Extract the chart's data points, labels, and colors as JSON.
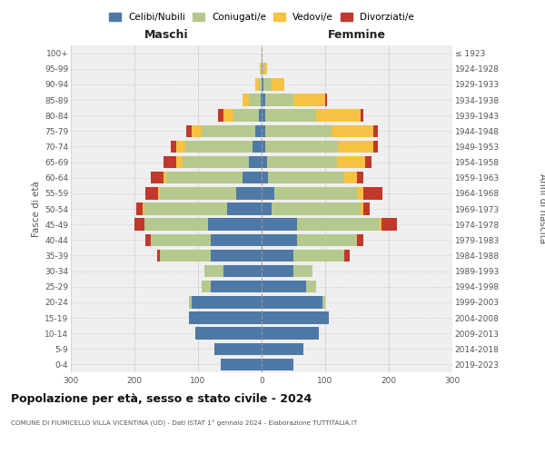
{
  "age_groups": [
    "0-4",
    "5-9",
    "10-14",
    "15-19",
    "20-24",
    "25-29",
    "30-34",
    "35-39",
    "40-44",
    "45-49",
    "50-54",
    "55-59",
    "60-64",
    "65-69",
    "70-74",
    "75-79",
    "80-84",
    "85-89",
    "90-94",
    "95-99",
    "100+"
  ],
  "birth_years": [
    "2019-2023",
    "2014-2018",
    "2009-2013",
    "2004-2008",
    "1999-2003",
    "1994-1998",
    "1989-1993",
    "1984-1988",
    "1979-1983",
    "1974-1978",
    "1969-1973",
    "1964-1968",
    "1959-1963",
    "1954-1958",
    "1949-1953",
    "1944-1948",
    "1939-1943",
    "1934-1938",
    "1929-1933",
    "1924-1928",
    "≤ 1923"
  ],
  "colors": {
    "celibi": "#4e79a7",
    "coniugati": "#b5c98e",
    "vedovi": "#f5c243",
    "divorziati": "#c0392b"
  },
  "maschi": {
    "celibi": [
      65,
      75,
      105,
      115,
      110,
      80,
      60,
      80,
      80,
      85,
      55,
      40,
      30,
      20,
      15,
      10,
      5,
      2,
      0,
      0,
      0
    ],
    "coniugati": [
      0,
      0,
      0,
      0,
      5,
      15,
      30,
      80,
      95,
      100,
      130,
      120,
      120,
      105,
      105,
      85,
      40,
      18,
      5,
      1,
      0
    ],
    "vedovi": [
      0,
      0,
      0,
      0,
      0,
      0,
      0,
      0,
      0,
      0,
      2,
      3,
      5,
      10,
      15,
      15,
      15,
      10,
      5,
      2,
      0
    ],
    "divorziati": [
      0,
      0,
      0,
      0,
      0,
      0,
      0,
      5,
      8,
      15,
      10,
      20,
      20,
      20,
      8,
      8,
      8,
      0,
      0,
      0,
      0
    ]
  },
  "femmine": {
    "celibi": [
      50,
      65,
      90,
      105,
      95,
      70,
      50,
      50,
      55,
      55,
      15,
      20,
      10,
      8,
      5,
      5,
      5,
      5,
      3,
      0,
      0
    ],
    "coniugati": [
      0,
      0,
      0,
      0,
      5,
      15,
      30,
      80,
      95,
      130,
      140,
      130,
      120,
      110,
      115,
      105,
      80,
      45,
      12,
      4,
      0
    ],
    "vedovi": [
      0,
      0,
      0,
      0,
      0,
      0,
      0,
      0,
      0,
      3,
      5,
      10,
      20,
      45,
      55,
      65,
      70,
      50,
      20,
      5,
      2
    ],
    "divorziati": [
      0,
      0,
      0,
      0,
      0,
      0,
      0,
      8,
      10,
      25,
      10,
      30,
      10,
      10,
      8,
      8,
      5,
      3,
      0,
      0,
      0
    ]
  },
  "xlim": 300,
  "title": "Popolazione per età, sesso e stato civile - 2024",
  "subtitle": "COMUNE DI FIUMICELLO VILLA VICENTINA (UD) - Dati ISTAT 1° gennaio 2024 - Elaborazione TUTTITALIA.IT",
  "xlabel_left": "Maschi",
  "xlabel_right": "Femmine",
  "ylabel_left": "Fasce di età",
  "ylabel_right": "Anni di nascita",
  "legend_labels": [
    "Celibi/Nubili",
    "Coniugati/e",
    "Vedovi/e",
    "Divorziati/e"
  ],
  "background_color": "#efefef"
}
